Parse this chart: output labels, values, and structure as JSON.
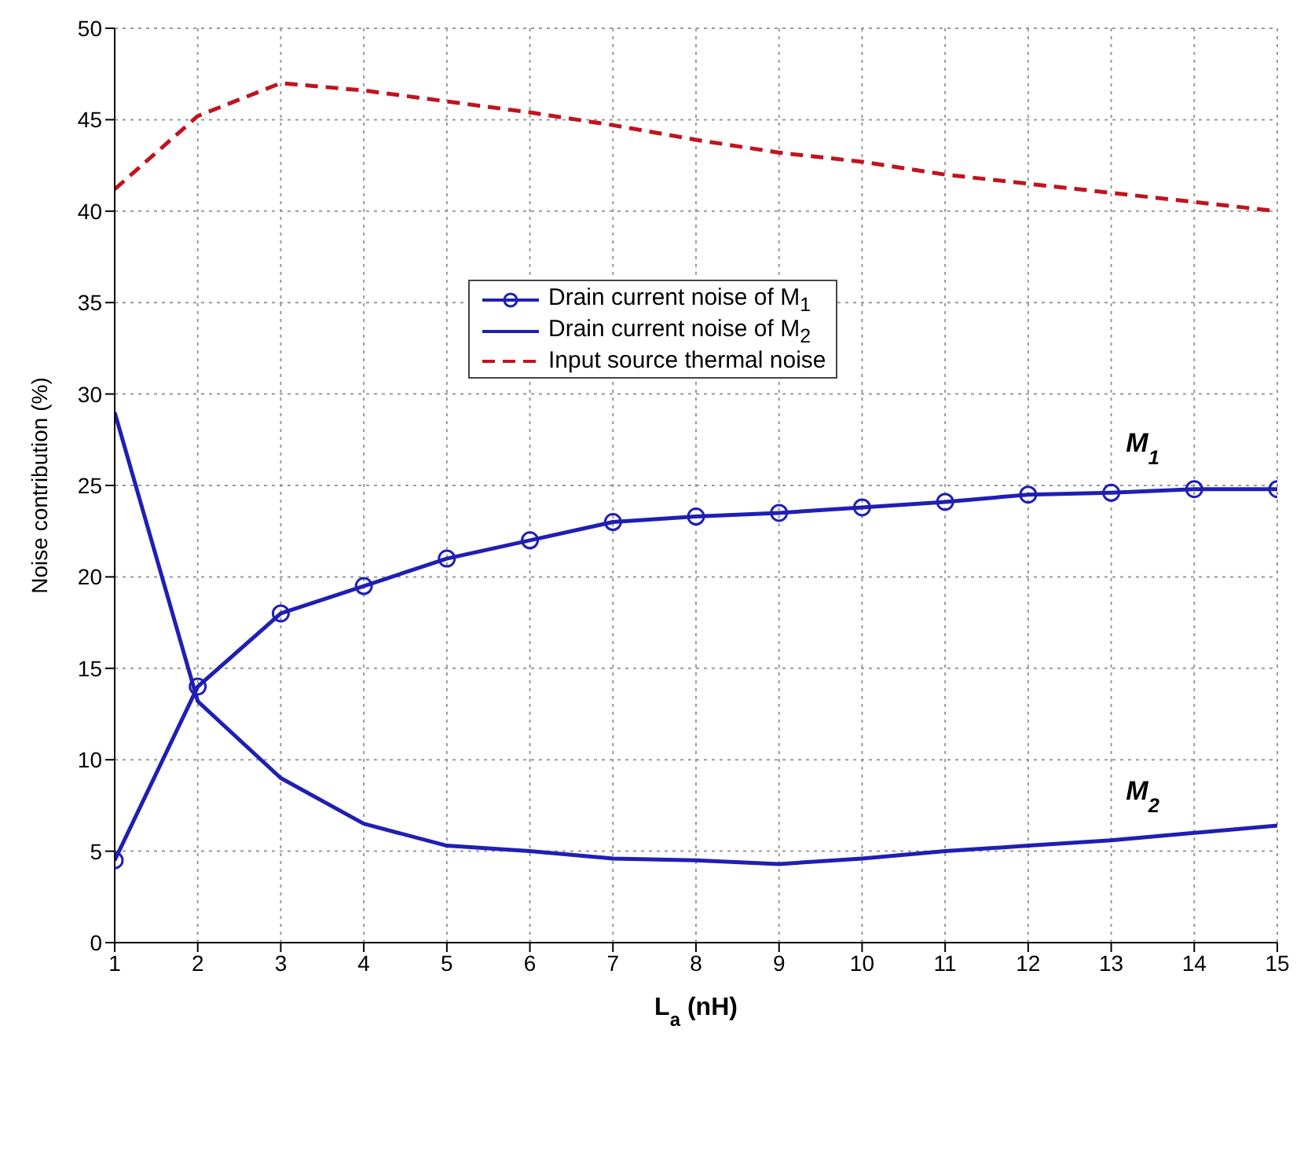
{
  "chart_data": {
    "type": "line",
    "xlabel": "L$_{a}$ (nH)",
    "ylabel": "Noise contribution (%)",
    "x": [
      1,
      2,
      3,
      4,
      5,
      6,
      7,
      8,
      9,
      10,
      11,
      12,
      13,
      14,
      15
    ],
    "series": [
      {
        "name": "Drain current noise of M$_{1}$",
        "color": "#1f1fb4",
        "marker": "circle",
        "line_style": "solid",
        "values": [
          4.5,
          14,
          18,
          19.5,
          21,
          22,
          23,
          23.3,
          23.5,
          23.8,
          24.1,
          24.5,
          24.6,
          24.8,
          24.8
        ]
      },
      {
        "name": "Drain current noise of M$_{2}$",
        "color": "#1f1fb4",
        "marker": "none",
        "line_style": "solid",
        "values": [
          29,
          13.2,
          9,
          6.5,
          5.3,
          5,
          4.6,
          4.5,
          4.3,
          4.6,
          5,
          5.3,
          5.6,
          6,
          6.4
        ]
      },
      {
        "name": "Input source thermal noise",
        "color": "#c0141e",
        "marker": "none",
        "line_style": "dashed",
        "values": [
          41.2,
          45.2,
          47,
          46.6,
          46,
          45.4,
          44.7,
          43.9,
          43.2,
          42.7,
          42,
          41.5,
          41,
          40.5,
          40
        ]
      }
    ],
    "annotations": [
      "M$_{1}$",
      "M$_{2}$"
    ],
    "xlim": [
      1,
      15
    ],
    "xticks": [
      1,
      2,
      3,
      4,
      5,
      6,
      7,
      8,
      9,
      10,
      11,
      12,
      13,
      14,
      15
    ],
    "ylim": [
      0,
      50
    ],
    "yticks": [
      0,
      5,
      10,
      15,
      20,
      25,
      30,
      35,
      40,
      45,
      50
    ],
    "grid": true,
    "legend": "center"
  }
}
